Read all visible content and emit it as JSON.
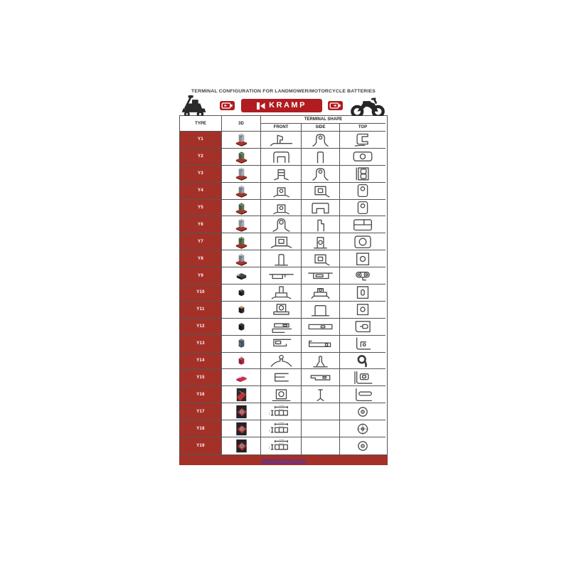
{
  "title": "TERMINAL CONFIGURATION FOR LANDMOWER/MOTORCYCLE BATTERIES",
  "brand": {
    "logo_text": "KRAMP",
    "website": "www.kramp.com"
  },
  "colors": {
    "brand_red": "#b01c20",
    "cell_red": "#a43128",
    "line_art": "#4a4a4a",
    "link_blue": "#3a35c8"
  },
  "header_icons": {
    "left": "lawnmower-icon",
    "battery_left": "battery-icon",
    "logo_mark": "kramp-k-icon",
    "battery_right": "battery-icon",
    "right": "motorcycle-icon"
  },
  "table": {
    "columns": {
      "type": "TYPE",
      "model": "3D",
      "group": "TERMINAL SHAPE",
      "front": "FRONT",
      "side": "SIDE",
      "top": "TOP"
    },
    "rows": [
      {
        "type": "Y1",
        "model": "grey-tab-red-base",
        "front": "flag-notch",
        "side": "tab-hole",
        "top": "c-bracket"
      },
      {
        "type": "Y2",
        "model": "green-block-red-base",
        "front": "arch-inner",
        "side": "narrow-arch",
        "top": "rrect-circle-wide"
      },
      {
        "type": "Y3",
        "model": "grey-tab-red-base",
        "front": "ribbed-post",
        "side": "tab-hole",
        "top": "stacked-squares"
      },
      {
        "type": "Y4",
        "model": "grey-cube-red-base",
        "front": "tab-hole-s",
        "side": "sq-in-sq-curve",
        "top": "rrect-circle-tall"
      },
      {
        "type": "Y5",
        "model": "green-block-red-base",
        "front": "tab-hole-s",
        "side": "wide-arch-notch",
        "top": "rrect-circle-tall"
      },
      {
        "type": "Y6",
        "model": "grey-tab-red-base",
        "front": "ring-post",
        "side": "l-post",
        "top": "split-box"
      },
      {
        "type": "Y7",
        "model": "green-cube-red-base",
        "front": "square-in-square-base",
        "side": "post-circle",
        "top": "rsq-big-circle"
      },
      {
        "type": "Y8",
        "model": "grey-cube-red-base",
        "front": "round-post",
        "side": "sq-in-sq-curve",
        "top": "square-circle"
      },
      {
        "type": "Y9",
        "model": "black-flat-clip",
        "front": "bar-step",
        "side": "bar-inner-rect",
        "top": "link"
      },
      {
        "type": "Y10",
        "model": "black-wedge-white-tab",
        "front": "t-post",
        "side": "post-circle-wide-base",
        "top": "rect-slot"
      },
      {
        "type": "Y11",
        "model": "black-block-brass-top",
        "front": "box-circle-base",
        "side": "arch-base",
        "top": "rect-circle"
      },
      {
        "type": "Y12",
        "model": "black-block",
        "front": "clamp-flag",
        "side": "bar-slot",
        "top": "wedge-notch"
      },
      {
        "type": "Y13",
        "model": "blue-striped-block",
        "front": "clamp-open",
        "side": "flat-clip",
        "top": "corner-circle"
      },
      {
        "type": "Y14",
        "model": "crimson-clip-block",
        "front": "round-post-wide-base",
        "side": "thin-post-flare",
        "top": "blob9"
      },
      {
        "type": "Y15",
        "model": "red-plate",
        "front": "e-bracket",
        "side": "step-bar-slot",
        "top": "bracket-rrect"
      },
      {
        "type": "Y16",
        "model": "photo-dark-red-corner",
        "front": "square-circle-base",
        "side": "pin-flare",
        "top": "l-bar"
      },
      {
        "type": "Y17",
        "model": "photo-red-terminal",
        "front": "dim-post",
        "front_dims": [
          "1.26 (IN)",
          "M6 (0.25)",
          "0.63"
        ],
        "side": "none",
        "top": "concentric"
      },
      {
        "type": "Y18",
        "model": "photo-red-terminal",
        "front": "dim-post",
        "front_dims": [
          "1.26 (IN)",
          "M6 (0.25)",
          "0.71"
        ],
        "side": "none",
        "top": "concentric-cross"
      },
      {
        "type": "Y19",
        "model": "photo-red-terminal",
        "front": "dim-post",
        "front_dims": [
          "1.26 (IN)",
          "M6 (0.25)",
          "0.63"
        ],
        "side": "none",
        "top": "concentric"
      }
    ]
  }
}
